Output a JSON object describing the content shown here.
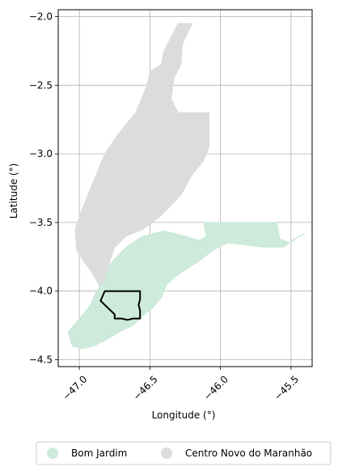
{
  "map": {
    "xlabel": "Longitude (°)",
    "ylabel": "Latitude (°)",
    "xlim": [
      -47.15,
      -45.35
    ],
    "ylim": [
      -4.55,
      -1.95
    ],
    "x_ticks": [
      {
        "value": -47.0,
        "label": "−47.0"
      },
      {
        "value": -46.5,
        "label": "−46.5"
      },
      {
        "value": -46.0,
        "label": "−46.0"
      },
      {
        "value": -45.5,
        "label": "−45.5"
      }
    ],
    "y_ticks": [
      {
        "value": -2.0,
        "label": "−2.0"
      },
      {
        "value": -2.5,
        "label": "−2.5"
      },
      {
        "value": -3.0,
        "label": "−3.0"
      },
      {
        "value": -3.5,
        "label": "−3.5"
      },
      {
        "value": -4.0,
        "label": "−4.0"
      },
      {
        "value": -4.5,
        "label": "−4.5"
      }
    ],
    "grid": true,
    "legend_placement": "bottom-center",
    "legend": [
      {
        "label": "Bom Jardim",
        "color": "#cdeadb"
      },
      {
        "label": "Centro Novo do Maranhão",
        "color": "#dcdcdc"
      }
    ],
    "regions": [
      {
        "name": "Centro Novo do Maranhão",
        "color": "#dcdcdc",
        "coords": [
          [
            -46.3,
            -2.05
          ],
          [
            -46.2,
            -2.05
          ],
          [
            -46.27,
            -2.2
          ],
          [
            -46.28,
            -2.35
          ],
          [
            -46.33,
            -2.45
          ],
          [
            -46.35,
            -2.6
          ],
          [
            -46.3,
            -2.7
          ],
          [
            -46.08,
            -2.7
          ],
          [
            -46.08,
            -2.95
          ],
          [
            -46.12,
            -3.05
          ],
          [
            -46.2,
            -3.15
          ],
          [
            -46.28,
            -3.3
          ],
          [
            -46.42,
            -3.45
          ],
          [
            -46.55,
            -3.55
          ],
          [
            -46.67,
            -3.6
          ],
          [
            -46.75,
            -3.68
          ],
          [
            -46.79,
            -3.8
          ],
          [
            -46.8,
            -3.94
          ],
          [
            -46.84,
            -4.0
          ],
          [
            -46.88,
            -3.92
          ],
          [
            -46.92,
            -3.85
          ],
          [
            -46.97,
            -3.78
          ],
          [
            -47.02,
            -3.7
          ],
          [
            -47.03,
            -3.55
          ],
          [
            -46.98,
            -3.4
          ],
          [
            -46.9,
            -3.2
          ],
          [
            -46.82,
            -3.0
          ],
          [
            -46.72,
            -2.85
          ],
          [
            -46.6,
            -2.7
          ],
          [
            -46.52,
            -2.5
          ],
          [
            -46.5,
            -2.4
          ],
          [
            -46.42,
            -2.35
          ],
          [
            -46.4,
            -2.25
          ],
          [
            -46.35,
            -2.15
          ]
        ]
      },
      {
        "name": "Bom Jardim",
        "color": "#cdeadb",
        "coords": [
          [
            -46.78,
            -3.8
          ],
          [
            -46.67,
            -3.68
          ],
          [
            -46.55,
            -3.6
          ],
          [
            -46.4,
            -3.56
          ],
          [
            -46.25,
            -3.6
          ],
          [
            -46.15,
            -3.63
          ],
          [
            -46.1,
            -3.6
          ],
          [
            -46.12,
            -3.5
          ],
          [
            -45.6,
            -3.5
          ],
          [
            -45.58,
            -3.62
          ],
          [
            -45.5,
            -3.65
          ],
          [
            -45.45,
            -3.6
          ],
          [
            -45.4,
            -3.58
          ],
          [
            -45.48,
            -3.62
          ],
          [
            -45.55,
            -3.68
          ],
          [
            -45.7,
            -3.68
          ],
          [
            -45.85,
            -3.66
          ],
          [
            -45.95,
            -3.65
          ],
          [
            -46.05,
            -3.7
          ],
          [
            -46.15,
            -3.78
          ],
          [
            -46.3,
            -3.88
          ],
          [
            -46.38,
            -3.95
          ],
          [
            -46.42,
            -4.05
          ],
          [
            -46.48,
            -4.12
          ],
          [
            -46.55,
            -4.18
          ],
          [
            -46.62,
            -4.25
          ],
          [
            -46.72,
            -4.3
          ],
          [
            -46.82,
            -4.36
          ],
          [
            -46.9,
            -4.4
          ],
          [
            -46.98,
            -4.42
          ],
          [
            -47.05,
            -4.4
          ],
          [
            -47.08,
            -4.3
          ],
          [
            -47.0,
            -4.2
          ],
          [
            -46.92,
            -4.1
          ],
          [
            -46.88,
            -4.0
          ],
          [
            -46.82,
            -3.92
          ]
        ]
      }
    ],
    "outline": {
      "color": "#000000",
      "coords": [
        [
          -46.82,
          -4.0
        ],
        [
          -46.57,
          -4.0
        ],
        [
          -46.57,
          -4.06
        ],
        [
          -46.58,
          -4.1
        ],
        [
          -46.57,
          -4.14
        ],
        [
          -46.57,
          -4.2
        ],
        [
          -46.62,
          -4.2
        ],
        [
          -46.66,
          -4.21
        ],
        [
          -46.7,
          -4.2
        ],
        [
          -46.75,
          -4.2
        ],
        [
          -46.75,
          -4.17
        ],
        [
          -46.8,
          -4.12
        ],
        [
          -46.85,
          -4.07
        ]
      ]
    }
  }
}
